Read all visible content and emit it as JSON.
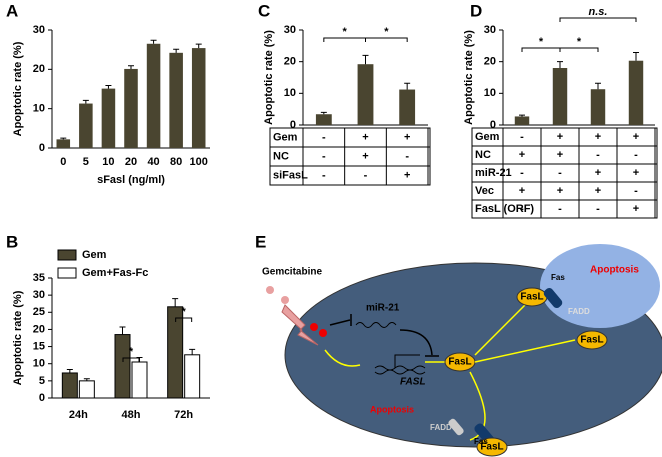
{
  "chart_data": [
    {
      "type": "bar",
      "panel": "A",
      "ylabel": "Apoptotic rate (%)",
      "xlabel": "sFasl (ng/ml)",
      "categories": [
        "0",
        "5",
        "10",
        "20",
        "40",
        "80",
        "100"
      ],
      "values": [
        2.2,
        11.3,
        15.1,
        20.1,
        26.5,
        24.2,
        25.4
      ],
      "errors": [
        0.3,
        0.8,
        0.8,
        0.8,
        0.9,
        0.9,
        1.0
      ],
      "color": "#4a4530",
      "ylim": [
        0,
        30
      ],
      "yticks": [
        0,
        10,
        20,
        30
      ]
    },
    {
      "type": "grouped_bar",
      "panel": "B",
      "ylabel": "Apoptotic rate (%)",
      "categories": [
        "24h",
        "48h",
        "72h"
      ],
      "series": [
        {
          "name": "Gem",
          "color": "#4a4530",
          "values": [
            7.3,
            18.5,
            26.6
          ],
          "errors": [
            1.0,
            2.2,
            2.4
          ]
        },
        {
          "name": "Gem+Fas-Fc",
          "color": "#ffffff",
          "values": [
            5.0,
            10.5,
            12.6
          ],
          "errors": [
            0.6,
            1.3,
            1.6
          ]
        }
      ],
      "annotations": [
        "*",
        "*"
      ],
      "ylim": [
        0,
        35
      ],
      "yticks": [
        0,
        5,
        10,
        15,
        20,
        25,
        30,
        35
      ]
    },
    {
      "type": "bar",
      "panel": "C",
      "ylabel": "Apoptotic rate (%)",
      "values": [
        3.4,
        19.2,
        11.2
      ],
      "errors": [
        0.6,
        2.8,
        2.0
      ],
      "color": "#4a4530",
      "ylim": [
        0,
        30
      ],
      "yticks": [
        0,
        10,
        20,
        30
      ],
      "annotations": [
        "*",
        "*"
      ],
      "condition_table": [
        {
          "label": "Gem",
          "cells": [
            "-",
            "+",
            "+"
          ]
        },
        {
          "label": "NC",
          "cells": [
            "-",
            "+",
            "-"
          ]
        },
        {
          "label": "siFasL",
          "cells": [
            "-",
            "-",
            "+"
          ]
        }
      ]
    },
    {
      "type": "bar",
      "panel": "D",
      "ylabel": "Apoptotic rate (%)",
      "values": [
        2.7,
        18.0,
        11.3,
        20.3
      ],
      "errors": [
        0.4,
        2.0,
        1.9,
        2.6
      ],
      "color": "#4a4530",
      "ylim": [
        0,
        30
      ],
      "yticks": [
        0,
        10,
        20,
        30
      ],
      "annotations": [
        "*",
        "*",
        "n.s."
      ],
      "condition_table": [
        {
          "label": "Gem",
          "cells": [
            "-",
            "+",
            "+",
            "+"
          ]
        },
        {
          "label": "NC",
          "cells": [
            "+",
            "+",
            "-",
            "-"
          ]
        },
        {
          "label": "miR-21",
          "cells": [
            "-",
            "-",
            "+",
            "+"
          ]
        },
        {
          "label": "Vec",
          "cells": [
            "+",
            "+",
            "+",
            "-"
          ]
        },
        {
          "label": "FasL (ORF)",
          "cells": [
            "-",
            "-",
            "-",
            "+"
          ]
        }
      ]
    }
  ],
  "diagram": {
    "panel": "E",
    "gemcitabine": "Gemcitabine",
    "mir21": "miR-21",
    "fasl_gene": "FASL",
    "fasl": [
      "FasL",
      "FasL",
      "FasL",
      "FasL"
    ],
    "fas": [
      "Fas",
      "Fas"
    ],
    "fadd": [
      "FADD",
      "FADD"
    ],
    "apoptosis": [
      "Apoptosis",
      "Apoptosis"
    ]
  }
}
